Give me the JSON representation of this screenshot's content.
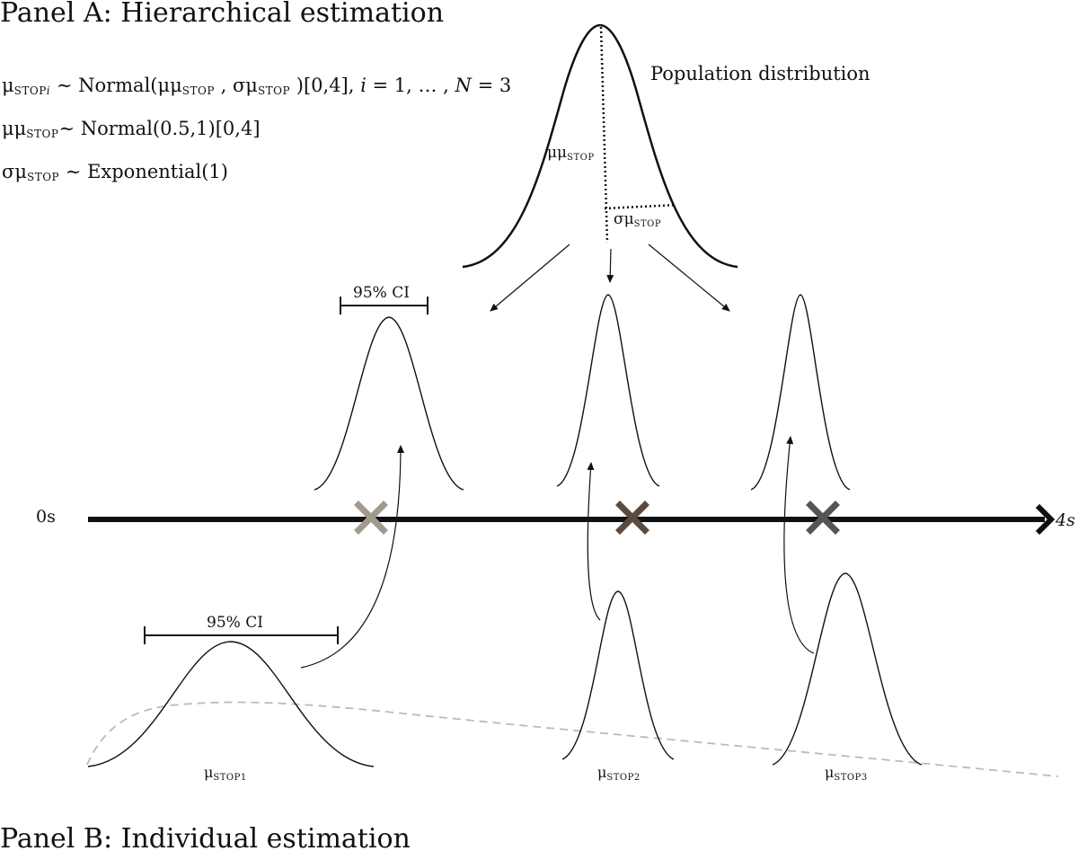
{
  "panel_a": {
    "title": "Panel A: Hierarchical estimation",
    "equations": {
      "line1": {
        "mu": "μ",
        "sub1": "STOP",
        "i": "i",
        "rest1": " ∼ Normal(μμ",
        "sub2": "STOP",
        "rest2": " , σμ",
        "sub3": "STOP",
        "rest3": " )[0,4],  ",
        "i2": "i",
        "rest4": " = 1, … , ",
        "N": "N",
        "rest5": " = 3"
      },
      "line2": {
        "pre": "μμ",
        "sub": "STOP",
        "post": "∼ Normal(0.5,1)[0,4]"
      },
      "line3": {
        "pre": "σμ",
        "sub": "STOP",
        "post": " ∼ Exponential(1)"
      }
    },
    "population_label": "Population distribution",
    "mu_mu_label": {
      "pre": "μμ",
      "sub": "STOP"
    },
    "sigma_mu_label": {
      "pre": "σμ",
      "sub": "STOP"
    },
    "ci_label": "95% CI"
  },
  "axis": {
    "start_label": "0s",
    "end_label": "4s",
    "markers": [
      {
        "name": "marker-1",
        "color": "#a39a8e"
      },
      {
        "name": "marker-2",
        "color": "#5a4a40"
      },
      {
        "name": "marker-3",
        "color": "#555555"
      }
    ]
  },
  "panel_b": {
    "title": "Panel B: Individual estimation",
    "ci_label": "95% CI",
    "individuals": [
      {
        "pre": "μ",
        "sub": "STOP1"
      },
      {
        "pre": "μ",
        "sub": "STOP2"
      },
      {
        "pre": "μ",
        "sub": "STOP3"
      }
    ]
  },
  "colors": {
    "ink": "#111111",
    "prior_dashed": "#bbbbbb"
  }
}
